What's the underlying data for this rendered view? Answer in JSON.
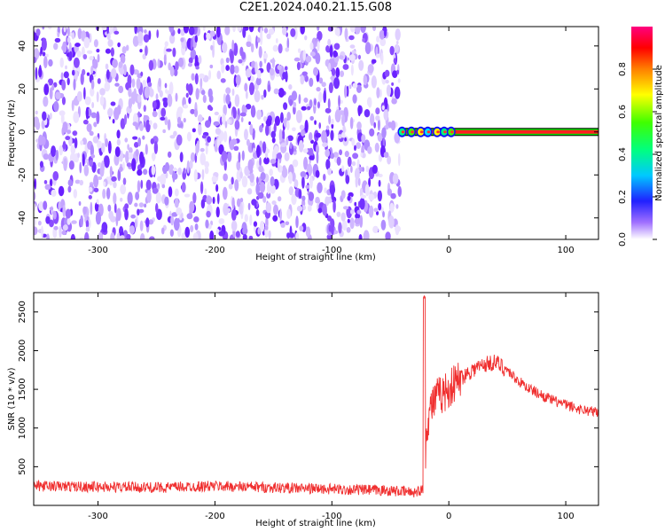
{
  "title": "C2E1.2024.040.21.15.G08",
  "chart_data": [
    {
      "type": "heatmap",
      "xlabel": "Height of straight line (km)",
      "ylabel": "Frequency (Hz)",
      "xlim": [
        -355,
        128
      ],
      "ylim": [
        -50,
        49
      ],
      "xticks": [
        -300,
        -200,
        -100,
        0,
        100
      ],
      "yticks": [
        -40,
        -20,
        0,
        20,
        40
      ],
      "noise_region_x": [
        -355,
        -42
      ],
      "signal_line": {
        "x": [
          -42,
          128
        ],
        "frequency": 0
      },
      "colorbar": {
        "label": "Normalized spectral amplitude",
        "ticks": [
          0.0,
          0.2,
          0.4,
          0.6,
          0.8
        ],
        "range": [
          0,
          1
        ]
      },
      "grid": false
    },
    {
      "type": "line",
      "xlabel": "Height of straight line (km)",
      "ylabel": "SNR (10 * v/v)",
      "xlim": [
        -355,
        128
      ],
      "ylim": [
        0,
        2750
      ],
      "xticks": [
        -300,
        -200,
        -100,
        0,
        100
      ],
      "yticks": [
        500,
        1000,
        1500,
        2000,
        2500
      ],
      "color": "#f03030",
      "series": [
        {
          "x": [
            -355,
            -300,
            -250,
            -200,
            -150,
            -100,
            -50,
            -30,
            -22,
            -21,
            -20,
            -18,
            -15,
            -10,
            -5,
            0,
            10,
            20,
            30,
            40,
            50,
            60,
            70,
            80,
            90,
            100,
            110,
            128
          ],
          "values": [
            250,
            240,
            230,
            250,
            230,
            210,
            190,
            170,
            200,
            2700,
            700,
            1100,
            1300,
            1400,
            1450,
            1500,
            1650,
            1750,
            1820,
            1850,
            1750,
            1600,
            1500,
            1420,
            1350,
            1300,
            1250,
            1200
          ]
        }
      ],
      "grid": false
    }
  ]
}
